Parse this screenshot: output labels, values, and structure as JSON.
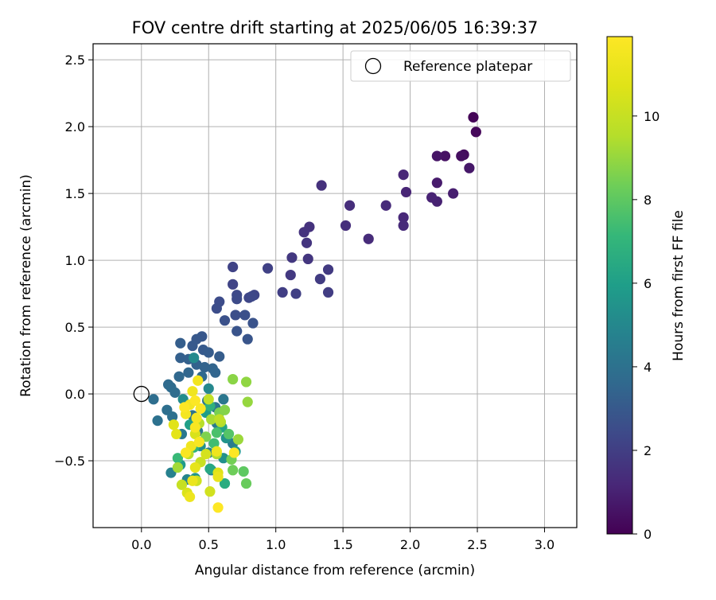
{
  "chart_data": {
    "type": "scatter",
    "title": "FOV centre drift starting at 2025/06/05 16:39:37",
    "xlabel": "Angular distance from reference (arcmin)",
    "ylabel": "Rotation from reference (arcmin)",
    "xlim": [
      -0.36,
      3.24
    ],
    "ylim": [
      -1.0,
      2.62
    ],
    "xticks": [
      0.0,
      0.5,
      1.0,
      1.5,
      2.0,
      2.5,
      3.0
    ],
    "xtick_labels": [
      "0.0",
      "0.5",
      "1.0",
      "1.5",
      "2.0",
      "2.5",
      "3.0"
    ],
    "yticks": [
      -0.5,
      0.0,
      0.5,
      1.0,
      1.5,
      2.0,
      2.5
    ],
    "ytick_labels": [
      "−0.5",
      "0.0",
      "0.5",
      "1.0",
      "1.5",
      "2.0",
      "2.5"
    ],
    "grid": true,
    "legend": {
      "placement": "top-right",
      "entries": [
        {
          "label": "Reference platepar",
          "marker": "open-circle"
        }
      ]
    },
    "reference_point": {
      "x": 0.0,
      "y": 0.0
    },
    "colorbar": {
      "label": "Hours from first FF file",
      "range": [
        0,
        11.9
      ],
      "ticks": [
        0,
        2,
        4,
        6,
        8,
        10
      ],
      "tick_labels": [
        "0",
        "2",
        "4",
        "6",
        "8",
        "10"
      ],
      "colormap": "viridis"
    },
    "points": [
      [
        2.47,
        2.07,
        0.1
      ],
      [
        2.49,
        1.96,
        0.2
      ],
      [
        2.4,
        1.79,
        0.3
      ],
      [
        2.38,
        1.78,
        0.4
      ],
      [
        2.26,
        1.78,
        0.5
      ],
      [
        2.2,
        1.78,
        0.6
      ],
      [
        2.44,
        1.69,
        0.7
      ],
      [
        2.2,
        1.58,
        0.8
      ],
      [
        2.32,
        1.5,
        0.9
      ],
      [
        2.2,
        1.44,
        1.0
      ],
      [
        2.16,
        1.47,
        1.05
      ],
      [
        1.97,
        1.51,
        1.1
      ],
      [
        1.95,
        1.64,
        1.15
      ],
      [
        1.95,
        1.32,
        1.2
      ],
      [
        1.95,
        1.26,
        1.25
      ],
      [
        1.82,
        1.41,
        1.3
      ],
      [
        1.69,
        1.16,
        1.35
      ],
      [
        1.55,
        1.41,
        1.4
      ],
      [
        1.52,
        1.26,
        1.45
      ],
      [
        1.34,
        1.56,
        1.5
      ],
      [
        1.25,
        1.25,
        1.55
      ],
      [
        1.21,
        1.21,
        1.6
      ],
      [
        1.23,
        1.13,
        1.65
      ],
      [
        1.24,
        1.01,
        1.7
      ],
      [
        1.12,
        1.02,
        1.75
      ],
      [
        1.11,
        0.89,
        1.8
      ],
      [
        1.39,
        0.93,
        1.85
      ],
      [
        1.33,
        0.86,
        1.9
      ],
      [
        1.39,
        0.76,
        1.95
      ],
      [
        1.05,
        0.76,
        2.0
      ],
      [
        1.15,
        0.75,
        2.05
      ],
      [
        0.94,
        0.94,
        2.1
      ],
      [
        0.68,
        0.95,
        2.15
      ],
      [
        0.68,
        0.82,
        2.2
      ],
      [
        0.84,
        0.74,
        2.25
      ],
      [
        0.8,
        0.72,
        2.3
      ],
      [
        0.82,
        0.73,
        2.35
      ],
      [
        0.71,
        0.74,
        2.4
      ],
      [
        0.71,
        0.71,
        2.45
      ],
      [
        0.58,
        0.69,
        2.5
      ],
      [
        0.56,
        0.64,
        2.55
      ],
      [
        0.7,
        0.59,
        2.6
      ],
      [
        0.77,
        0.59,
        2.65
      ],
      [
        0.62,
        0.55,
        2.7
      ],
      [
        0.83,
        0.53,
        2.75
      ],
      [
        0.71,
        0.47,
        2.8
      ],
      [
        0.79,
        0.41,
        2.85
      ],
      [
        0.45,
        0.43,
        2.9
      ],
      [
        0.41,
        0.41,
        2.95
      ],
      [
        0.38,
        0.36,
        3.0
      ],
      [
        0.46,
        0.33,
        3.05
      ],
      [
        0.5,
        0.31,
        3.1
      ],
      [
        0.58,
        0.28,
        3.15
      ],
      [
        0.29,
        0.38,
        3.2
      ],
      [
        0.29,
        0.27,
        3.25
      ],
      [
        0.35,
        0.26,
        3.3
      ],
      [
        0.41,
        0.22,
        3.35
      ],
      [
        0.47,
        0.2,
        3.4
      ],
      [
        0.53,
        0.19,
        3.45
      ],
      [
        0.55,
        0.16,
        3.5
      ],
      [
        0.35,
        0.16,
        3.55
      ],
      [
        0.28,
        0.13,
        3.6
      ],
      [
        0.45,
        0.13,
        3.65
      ],
      [
        0.2,
        0.07,
        3.7
      ],
      [
        0.22,
        0.05,
        3.75
      ],
      [
        0.25,
        0.01,
        3.8
      ],
      [
        0.09,
        -0.04,
        3.85
      ],
      [
        0.19,
        -0.12,
        3.9
      ],
      [
        0.23,
        -0.17,
        3.95
      ],
      [
        0.12,
        -0.2,
        4.0
      ],
      [
        0.33,
        -0.08,
        4.05
      ],
      [
        0.38,
        -0.16,
        4.1
      ],
      [
        0.49,
        -0.05,
        4.15
      ],
      [
        0.55,
        -0.1,
        4.2
      ],
      [
        0.61,
        -0.04,
        4.25
      ],
      [
        0.3,
        -0.3,
        4.3
      ],
      [
        0.42,
        -0.28,
        4.35
      ],
      [
        0.56,
        -0.22,
        4.4
      ],
      [
        0.68,
        -0.37,
        4.5
      ],
      [
        0.5,
        -0.44,
        4.6
      ],
      [
        0.22,
        -0.59,
        4.7
      ],
      [
        0.52,
        -0.57,
        4.8
      ],
      [
        0.34,
        -0.64,
        4.9
      ],
      [
        0.5,
        0.04,
        5.0
      ],
      [
        0.39,
        0.27,
        5.1
      ],
      [
        0.31,
        -0.04,
        5.2
      ],
      [
        0.44,
        -0.39,
        5.3
      ],
      [
        0.61,
        -0.48,
        5.4
      ],
      [
        0.63,
        -0.33,
        5.5
      ],
      [
        0.4,
        -0.63,
        5.6
      ],
      [
        0.7,
        -0.43,
        5.7
      ],
      [
        0.29,
        -0.53,
        5.8
      ],
      [
        0.48,
        -0.14,
        5.9
      ],
      [
        0.36,
        -0.23,
        6.0
      ],
      [
        0.6,
        -0.25,
        6.2
      ],
      [
        0.51,
        -0.56,
        6.4
      ],
      [
        0.62,
        -0.67,
        6.6
      ],
      [
        0.51,
        -0.09,
        6.8
      ],
      [
        0.39,
        -0.4,
        7.0
      ],
      [
        0.27,
        -0.48,
        7.2
      ],
      [
        0.54,
        -0.37,
        7.4
      ],
      [
        0.56,
        -0.29,
        7.6
      ],
      [
        0.65,
        -0.3,
        7.8
      ],
      [
        0.76,
        -0.58,
        8.0
      ],
      [
        0.78,
        -0.67,
        8.2
      ],
      [
        0.68,
        -0.57,
        8.3
      ],
      [
        0.67,
        -0.49,
        8.4
      ],
      [
        0.58,
        -0.14,
        8.5
      ],
      [
        0.48,
        -0.32,
        8.6
      ],
      [
        0.62,
        -0.12,
        8.7
      ],
      [
        0.68,
        0.11,
        8.8
      ],
      [
        0.78,
        0.09,
        8.9
      ],
      [
        0.79,
        -0.06,
        9.0
      ],
      [
        0.72,
        -0.34,
        9.1
      ],
      [
        0.27,
        -0.55,
        9.2
      ],
      [
        0.52,
        -0.19,
        9.3
      ],
      [
        0.56,
        -0.45,
        9.4
      ],
      [
        0.59,
        -0.21,
        9.5
      ],
      [
        0.43,
        -0.22,
        9.6
      ],
      [
        0.35,
        -0.45,
        9.7
      ],
      [
        0.58,
        -0.19,
        9.8
      ],
      [
        0.5,
        -0.04,
        9.9
      ],
      [
        0.3,
        -0.68,
        10.0
      ],
      [
        0.44,
        -0.51,
        10.1
      ],
      [
        0.41,
        -0.65,
        10.2
      ],
      [
        0.51,
        -0.73,
        10.3
      ],
      [
        0.48,
        -0.45,
        10.4
      ],
      [
        0.4,
        -0.3,
        10.5
      ],
      [
        0.34,
        -0.74,
        10.6
      ],
      [
        0.57,
        -0.59,
        10.7
      ],
      [
        0.24,
        -0.23,
        10.8
      ],
      [
        0.26,
        -0.3,
        10.9
      ],
      [
        0.4,
        -0.55,
        11.0
      ],
      [
        0.57,
        -0.62,
        11.1
      ],
      [
        0.38,
        -0.65,
        11.2
      ],
      [
        0.36,
        -0.77,
        11.25
      ],
      [
        0.56,
        -0.43,
        11.3
      ],
      [
        0.37,
        -0.39,
        11.35
      ],
      [
        0.38,
        0.02,
        11.4
      ],
      [
        0.42,
        0.1,
        11.45
      ],
      [
        0.36,
        -0.08,
        11.5
      ],
      [
        0.33,
        -0.15,
        11.55
      ],
      [
        0.41,
        -0.18,
        11.6
      ],
      [
        0.4,
        -0.25,
        11.65
      ],
      [
        0.43,
        -0.36,
        11.7
      ],
      [
        0.33,
        -0.44,
        11.75
      ],
      [
        0.44,
        -0.11,
        11.8
      ],
      [
        0.32,
        -0.1,
        11.82
      ],
      [
        0.69,
        -0.44,
        11.85
      ],
      [
        0.4,
        -0.05,
        11.88
      ],
      [
        0.57,
        -0.85,
        11.9
      ]
    ]
  }
}
